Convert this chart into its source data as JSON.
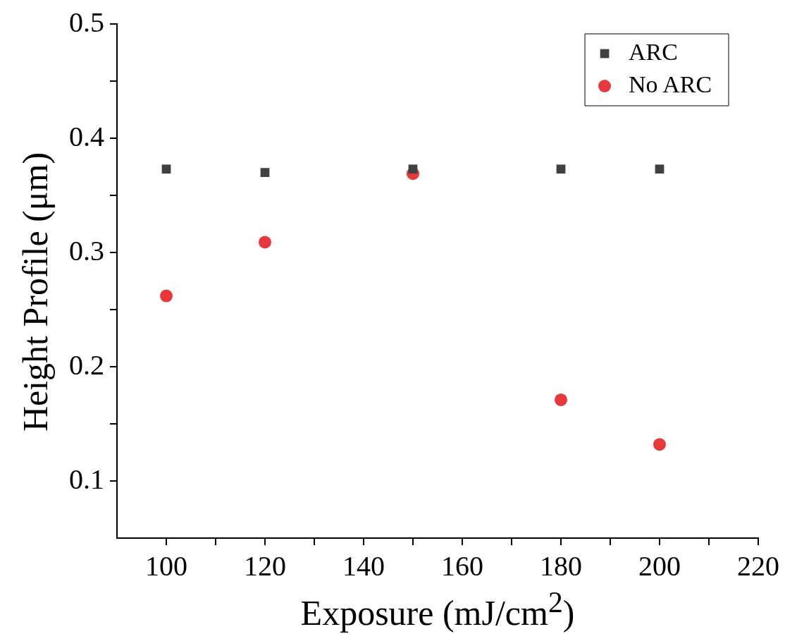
{
  "chart_data": {
    "type": "scatter",
    "xlabel": "Exposure (mJ/cm$^{2}$)",
    "ylabel": "Height Profile (μm)",
    "x": [
      100,
      120,
      150,
      180,
      200
    ],
    "series": [
      {
        "name": "ARC",
        "color": "#404040",
        "marker": "square",
        "values": [
          0.373,
          0.37,
          0.373,
          0.373,
          0.373
        ]
      },
      {
        "name": "No ARC",
        "color": "#e8383b",
        "marker": "circle",
        "values": [
          0.262,
          0.309,
          0.369,
          0.171,
          0.132
        ]
      }
    ],
    "xlim": [
      90,
      220
    ],
    "xticks": [
      100,
      {
        "value": 110,
        "label": null
      },
      120,
      {
        "value": 130,
        "label": null
      },
      140,
      {
        "value": 150,
        "label": null
      },
      160,
      {
        "value": 170,
        "label": null
      },
      180,
      {
        "value": 190,
        "label": null
      },
      200,
      {
        "value": 210,
        "label": null
      },
      220
    ],
    "ylim": [
      0.05,
      0.5
    ],
    "yticks": [
      0.1,
      {
        "value": 0.15,
        "label": null
      },
      0.2,
      {
        "value": 0.25,
        "label": null
      },
      0.3,
      {
        "value": 0.35,
        "label": null
      },
      0.4,
      {
        "value": 0.45,
        "label": null
      },
      0.5
    ],
    "grid": false,
    "legend": "top right"
  }
}
